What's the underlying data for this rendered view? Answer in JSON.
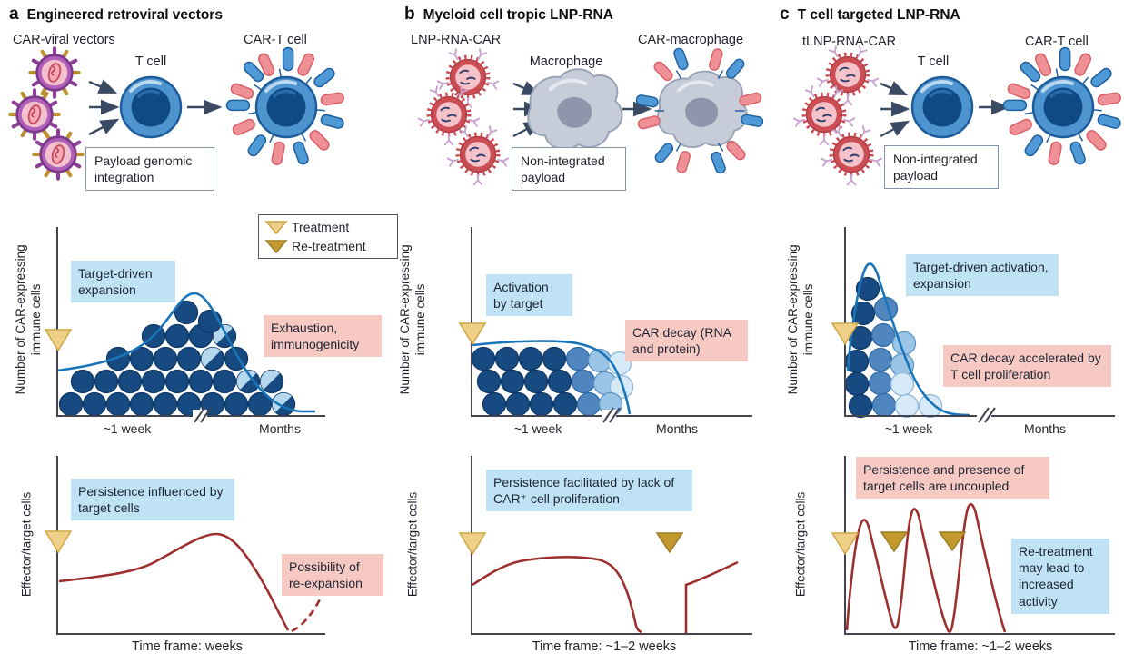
{
  "legend": {
    "treatment": "Treatment",
    "retreatment": "Re-treatment"
  },
  "colors": {
    "cell_dark": "#174a80",
    "cell_dark_stroke": "#0d3766",
    "cell_medium": "#4f86c0",
    "cell_medium_stroke": "#2f6aa8",
    "cell_light": "#9cc4e6",
    "cell_light_stroke": "#5d94c4",
    "cell_faint": "#d6eaf8",
    "cell_faint_stroke": "#8fb8da",
    "cell_half_overlay": "#b5d8ef",
    "curve_blue": "#1a74b8",
    "curve_red": "#9e2f2f",
    "note_blue": "#bfe3f4",
    "note_pink": "#f7c9c3",
    "treatment_gold": "#eed089",
    "retreatment_gold": "#c2992f"
  },
  "panels": [
    {
      "letter": "a",
      "title": "Engineered retroviral vectors",
      "illustration": {
        "vector_label": "CAR-viral vectors",
        "cell_label": "T cell",
        "product_label": "CAR-T cell",
        "payload_note": "Payload genomic integration"
      },
      "expansion_chart": {
        "ylabel": "Number of CAR-expressing immune cells",
        "note_blue": "Target-driven expansion",
        "note_pink": "Exhaustion, immunogenicity",
        "tick_early": "~1 week",
        "tick_late": "Months"
      },
      "activity_chart": {
        "ylabel": "Effector/target cells",
        "note_blue": "Persistence influenced by target cells",
        "note_pink": "Possibility of re-expansion",
        "xlabel": "Time frame: weeks"
      }
    },
    {
      "letter": "b",
      "title": "Myeloid cell tropic LNP-RNA",
      "illustration": {
        "vector_label": "LNP-RNA-CAR",
        "cell_label": "Macrophage",
        "product_label": "CAR-macrophage",
        "payload_note": "Non-integrated payload"
      },
      "expansion_chart": {
        "ylabel": "Number of CAR-expressing immune cells",
        "note_blue": "Activation by target",
        "note_pink": "CAR decay (RNA and protein)",
        "tick_early": "~1 week",
        "tick_late": "Months"
      },
      "activity_chart": {
        "ylabel": "Effector/target cells",
        "note_blue": "Persistence facilitated by lack of CAR⁺ cell proliferation",
        "xlabel": "Time frame: ~1–2 weeks"
      }
    },
    {
      "letter": "c",
      "title": "T cell targeted LNP-RNA",
      "illustration": {
        "vector_label": "tLNP-RNA-CAR",
        "cell_label": "T cell",
        "product_label": "CAR-T cell",
        "payload_note": "Non-integrated payload"
      },
      "expansion_chart": {
        "ylabel": "Number of CAR-expressing immune cells",
        "note_blue": "Target-driven activation, expansion",
        "note_pink": "CAR decay accelerated by T cell proliferation",
        "tick_early": "~1 week",
        "tick_late": "Months"
      },
      "activity_chart": {
        "ylabel": "Effector/target cells",
        "note_pink": "Persistence and presence of target cells are uncoupled",
        "note_blue": "Re-treatment may lead to increased activity",
        "xlabel": "Time frame: ~1–2 weeks"
      }
    }
  ],
  "chart_data": [
    {
      "panel": "a",
      "row": "expansion",
      "type": "area",
      "ylabel": "Number of CAR-expressing immune cells",
      "x_ticks": [
        "~1 week",
        "Months"
      ],
      "axis_break": true,
      "trend": "moderate plateau rising to a single mid-course peak, then declining to near zero over months; area filled with dark CAR+ cells, a few half-faded cells appearing late",
      "markers": [
        {
          "type": "treatment",
          "x": "t0"
        }
      ],
      "annotations": [
        "Target-driven expansion",
        "Exhaustion, immunogenicity"
      ]
    },
    {
      "panel": "a",
      "row": "activity",
      "type": "line",
      "ylabel": "Effector/target cells",
      "xlabel": "Time frame: weeks",
      "trend": "slow rise to a late peak then steep drop to baseline; dashed tail rising again (possible re-expansion)",
      "markers": [
        {
          "type": "treatment",
          "x": "t0"
        }
      ],
      "annotations": [
        "Persistence influenced by target cells",
        "Possibility of re-expansion"
      ]
    },
    {
      "panel": "b",
      "row": "expansion",
      "type": "area",
      "ylabel": "Number of CAR-expressing immune cells",
      "x_ticks": [
        "~1 week",
        "Months"
      ],
      "axis_break": true,
      "trend": "flat high plateau for about a week, then sharp decay to zero; cells fade from dark to light blue left-to-right (CAR dilution)",
      "markers": [
        {
          "type": "treatment",
          "x": "t0"
        }
      ],
      "annotations": [
        "Activation by target",
        "CAR decay (RNA and protein)"
      ]
    },
    {
      "panel": "b",
      "row": "activity",
      "type": "line",
      "ylabel": "Effector/target cells",
      "xlabel": "Time frame: ~1–2 weeks",
      "trend": "rise to plateau then steep fall to baseline; after re-treatment a vertical jump and renewed rise",
      "markers": [
        {
          "type": "treatment",
          "x": "t0"
        },
        {
          "type": "re-treatment",
          "x": "late"
        }
      ],
      "annotations": [
        "Persistence facilitated by lack of CAR⁺ cell proliferation"
      ]
    },
    {
      "panel": "c",
      "row": "expansion",
      "type": "area",
      "ylabel": "Number of CAR-expressing immune cells",
      "x_ticks": [
        "~1 week",
        "Months"
      ],
      "axis_break": true,
      "trend": "very sharp early peak within ~1 week then rapid decay; cells fade dark-to-light across columns (decay accelerated by proliferation)",
      "markers": [
        {
          "type": "treatment",
          "x": "t0"
        }
      ],
      "annotations": [
        "Target-driven activation, expansion",
        "CAR decay accelerated by T cell proliferation"
      ]
    },
    {
      "panel": "c",
      "row": "activity",
      "type": "line",
      "ylabel": "Effector/target cells",
      "xlabel": "Time frame: ~1–2 weeks",
      "trend": "three successive spikes of increasing amplitude, one per treatment/re-treatment, each decaying back to baseline",
      "markers": [
        {
          "type": "treatment",
          "x": "t0"
        },
        {
          "type": "re-treatment",
          "x": "mid"
        },
        {
          "type": "re-treatment",
          "x": "late"
        }
      ],
      "annotations": [
        "Persistence and presence of target cells are uncoupled",
        "Re-treatment may lead to increased activity"
      ]
    }
  ]
}
